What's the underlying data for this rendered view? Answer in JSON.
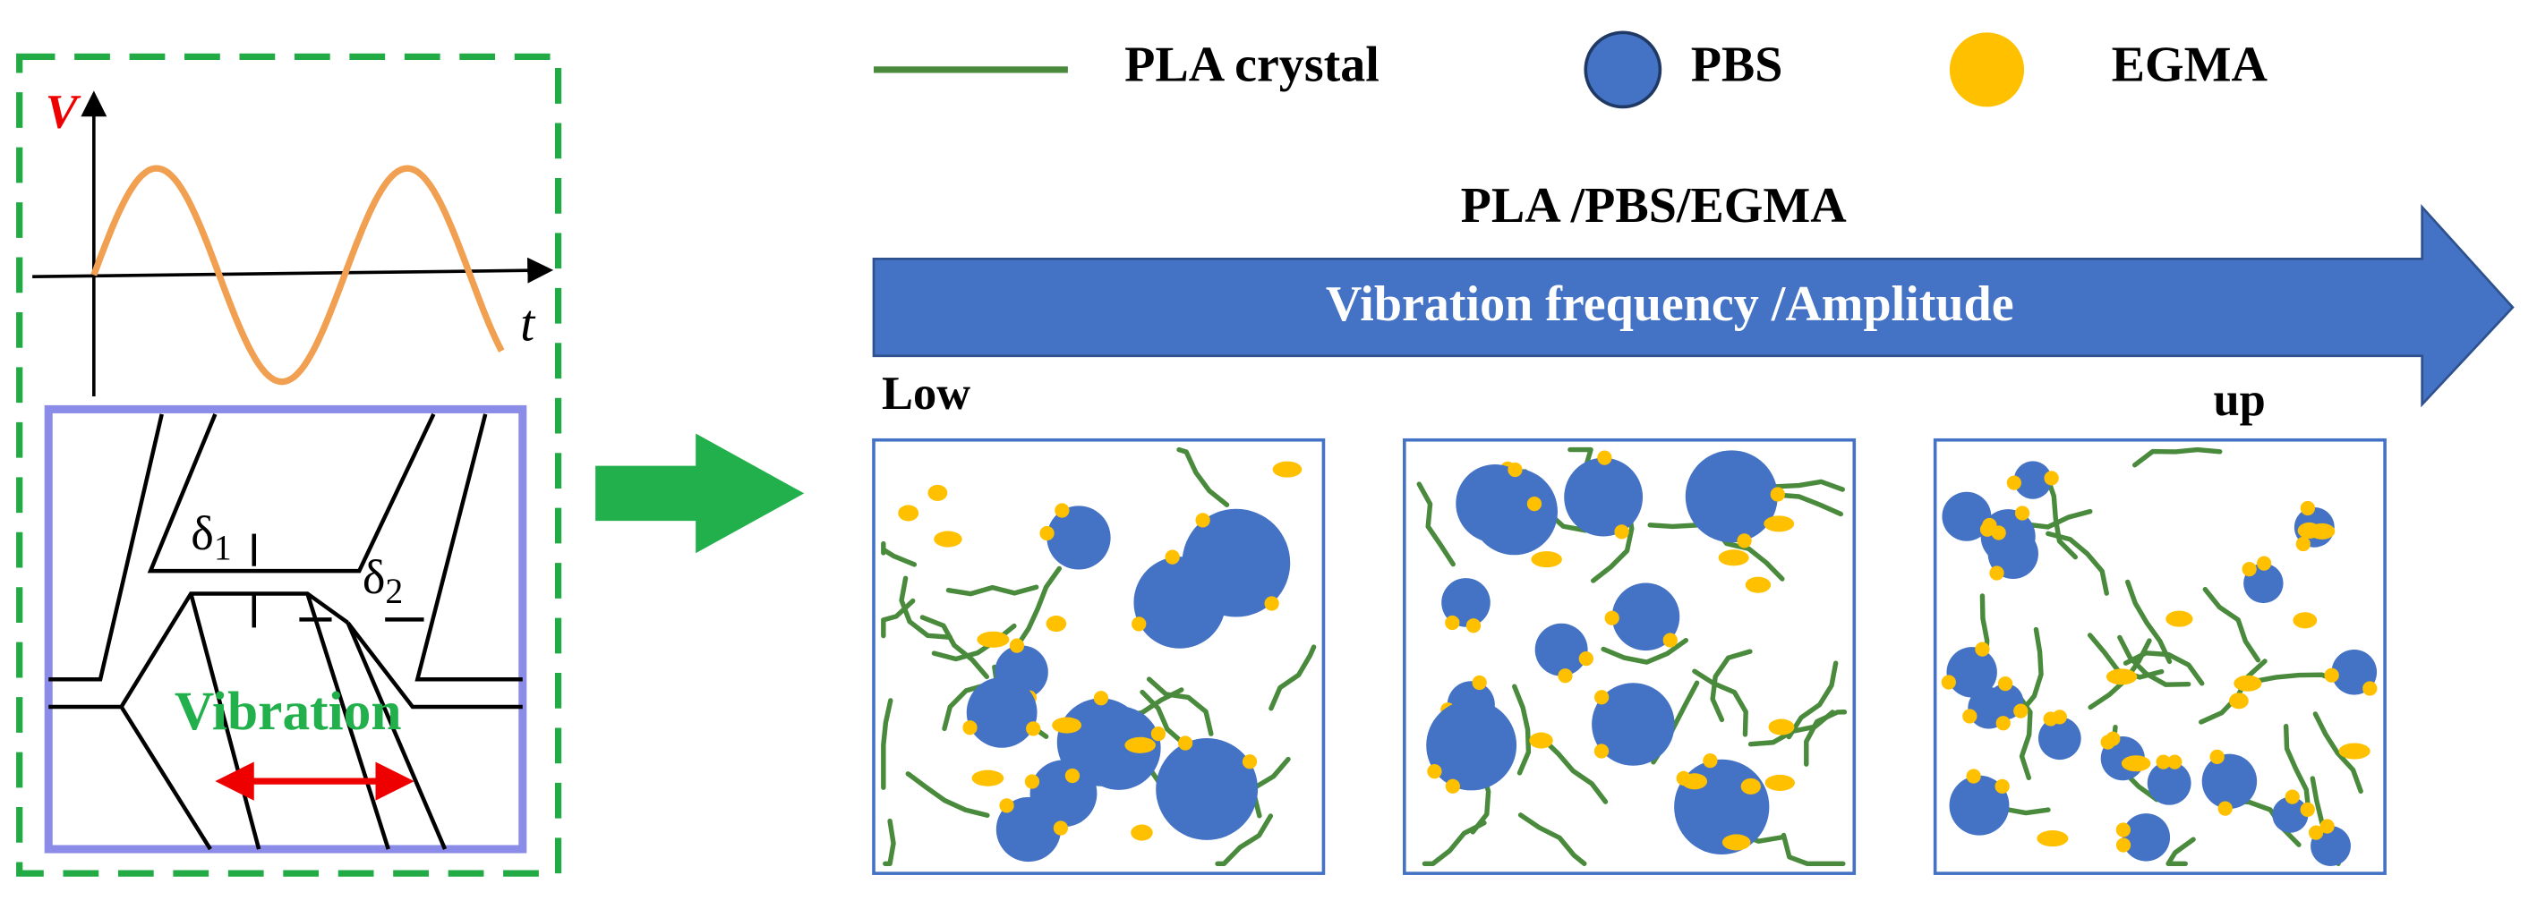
{
  "schematic": {
    "axis_v": "V",
    "axis_t": "t",
    "delta_1": {
      "symbol": "δ",
      "subscript": "1"
    },
    "delta_2": {
      "symbol": "δ",
      "subscript": "2"
    },
    "motion_label": "Vibration"
  },
  "legend": [
    {
      "label": "PLA crystal"
    },
    {
      "label": "PBS"
    },
    {
      "label": "EGMA"
    }
  ],
  "process": {
    "title": "PLA /PBS/EGMA",
    "arrow_label": "Vibration frequency /Amplitude",
    "start_label": "Low",
    "end_label": "up"
  }
}
